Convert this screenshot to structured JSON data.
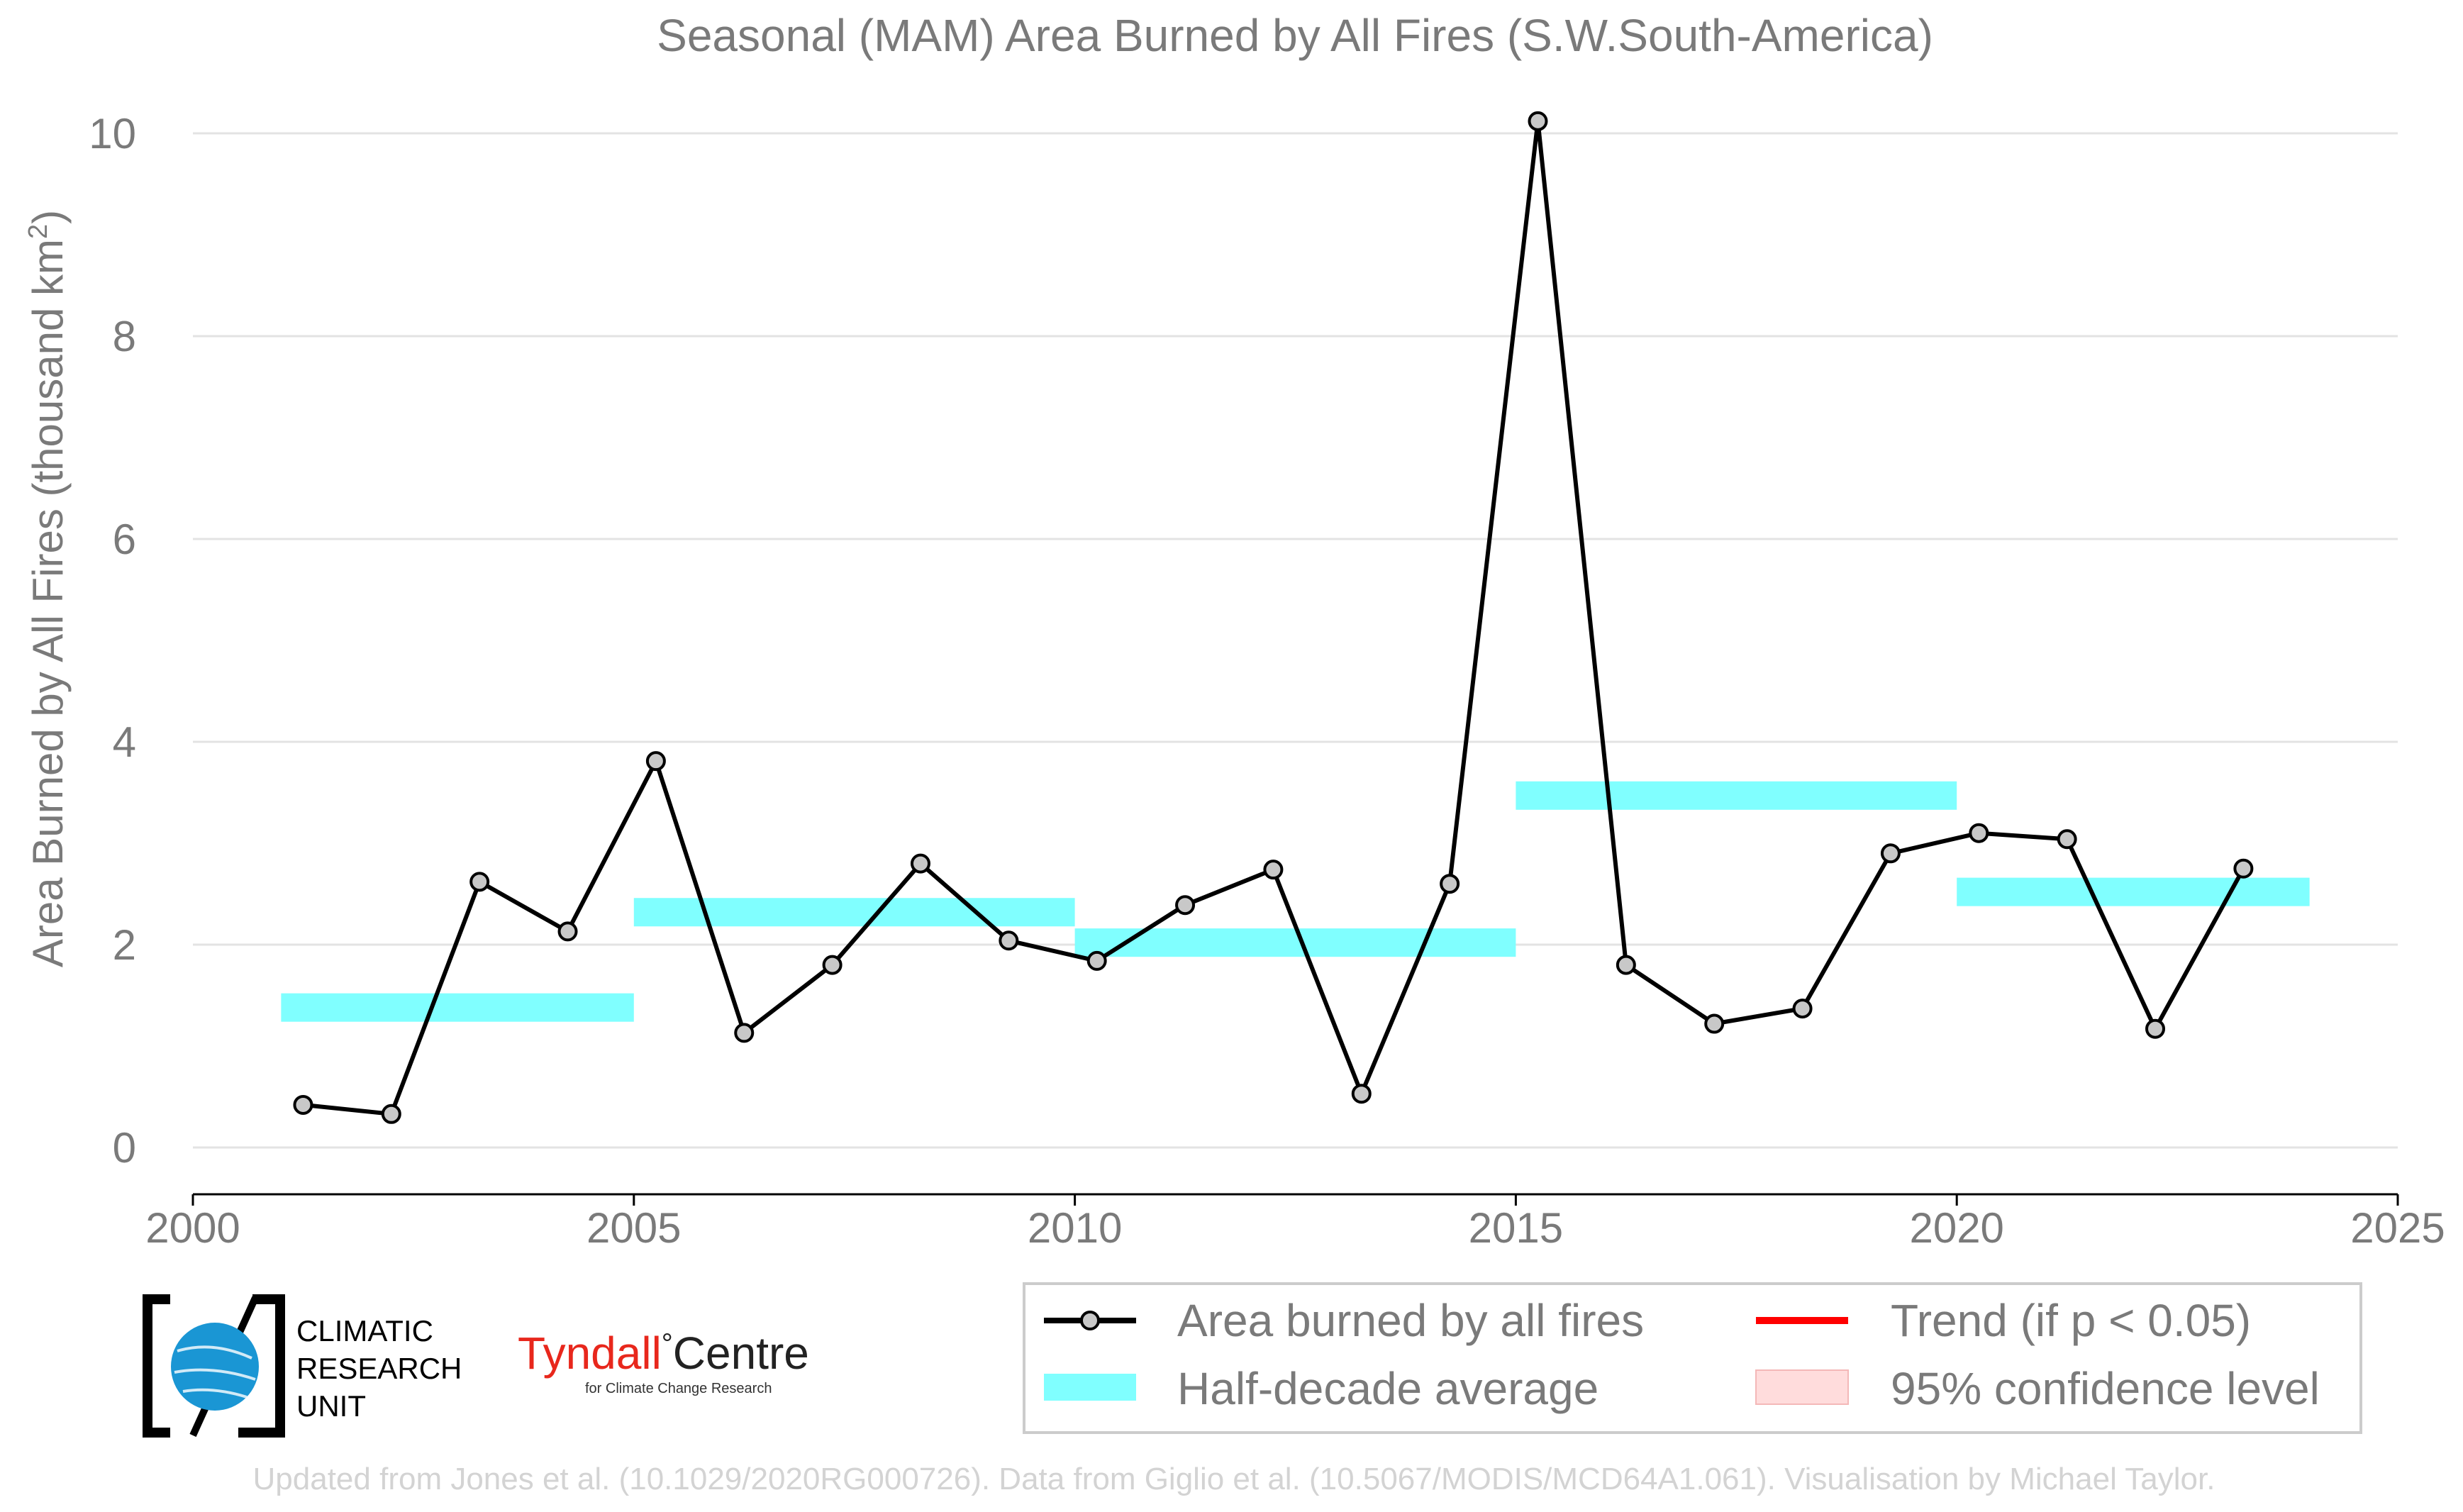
{
  "colors": {
    "line": "#000000",
    "marker_fill": "#c8c8c8",
    "half_decade": "#80ffff",
    "trend": "#ff0000",
    "confidence": "#ffdcdc",
    "text": "#7a7a7a",
    "credit": "#d3d3d3",
    "tyndall_red": "#e8271c",
    "cru_blue": "#1a96d4"
  },
  "chart_data": {
    "type": "line",
    "title": "Seasonal (MAM) Area Burned by All Fires (S.W.South-America)",
    "ylabel_main": "Area Burned by All Fires (thousand km",
    "ylabel_sup": "2",
    "ylabel_close": ")",
    "xlim": [
      2000,
      2025
    ],
    "ylim": [
      -0.45,
      10.3
    ],
    "xticks": [
      2000,
      2005,
      2010,
      2015,
      2020,
      2025
    ],
    "yticks": [
      0,
      2,
      4,
      6,
      8,
      10
    ],
    "grid": "horizontal",
    "series": [
      {
        "name": "Area burned by all fires",
        "x": [
          2001.25,
          2002.25,
          2003.25,
          2004.25,
          2005.25,
          2006.25,
          2007.25,
          2008.25,
          2009.25,
          2010.25,
          2011.25,
          2012.25,
          2013.25,
          2014.25,
          2015.25,
          2016.25,
          2017.25,
          2018.25,
          2019.25,
          2020.25,
          2021.25,
          2022.25,
          2023.25
        ],
        "values": [
          0.42,
          0.33,
          2.62,
          2.13,
          3.81,
          1.13,
          1.8,
          2.8,
          2.04,
          1.84,
          2.39,
          2.74,
          0.53,
          2.6,
          10.12,
          1.8,
          1.22,
          1.37,
          2.9,
          3.1,
          3.04,
          1.17,
          2.75
        ]
      },
      {
        "name": "Half-decade average",
        "segments": [
          {
            "x0": 2001.0,
            "x1": 2005.0,
            "y": 1.38
          },
          {
            "x0": 2005.0,
            "x1": 2010.0,
            "y": 2.32
          },
          {
            "x0": 2010.0,
            "x1": 2015.0,
            "y": 2.02
          },
          {
            "x0": 2015.0,
            "x1": 2020.0,
            "y": 3.47
          },
          {
            "x0": 2020.0,
            "x1": 2024.0,
            "y": 2.52
          }
        ],
        "band_halfwidth": 0.14
      }
    ],
    "legend": {
      "placement": "bottom-right",
      "items": [
        {
          "label": "Area burned by all fires",
          "kind": "line-marker"
        },
        {
          "label": "Trend (if p < 0.05)",
          "kind": "line"
        },
        {
          "label": "Half-decade average",
          "kind": "band"
        },
        {
          "label": "95% confidence level",
          "kind": "patch"
        }
      ]
    }
  },
  "logos": {
    "cru_lines": [
      "CLIMATIC",
      "RESEARCH",
      "UNIT"
    ],
    "tyndall_main": "Tyndall",
    "tyndall_degree": "°",
    "tyndall_centre": "Centre",
    "tyndall_sub": "for Climate Change Research"
  },
  "credit": "Updated from Jones et al. (10.1029/2020RG000726). Data from Giglio et al. (10.5067/MODIS/MCD64A1.061). Visualisation by Michael Taylor."
}
